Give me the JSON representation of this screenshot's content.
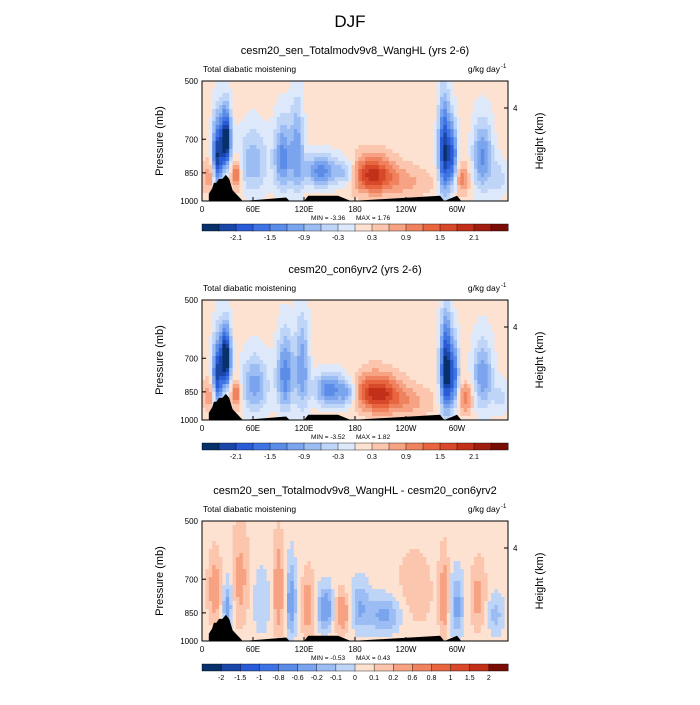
{
  "figure_title": "DJF",
  "chart_data": [
    {
      "type": "heatmap",
      "title": "cesm20_sen_Totalmodv9v8_WangHL (yrs 2-6)",
      "left_label": "Total diabatic moistening",
      "units": "g/kg day",
      "units_exp": "-1",
      "ylabel": "Pressure (mb)",
      "ylabel_right": "Height (km)",
      "yticks": [
        "500",
        "700",
        "850",
        "1000"
      ],
      "yticks_right": [
        "4"
      ],
      "xticks": [
        "0",
        "60E",
        "120E",
        "180",
        "120W",
        "60W"
      ],
      "xlim": [
        0,
        360
      ],
      "ylim": [
        1000,
        500
      ],
      "min_label": "MIN = -3.36",
      "max_label": "MAX = 1.76",
      "colorbar_labels": [
        "-2.1",
        "-1.5",
        "-0.9",
        "-0.3",
        "0.3",
        "0.9",
        "1.5",
        "2.1"
      ],
      "colorbar_colors": [
        "#08306b",
        "#1a46a8",
        "#2a5bd7",
        "#3f73e3",
        "#5b8ce8",
        "#7aa4ee",
        "#9cbdf3",
        "#bfd5f8",
        "#dde9fb",
        "#fde2d2",
        "#fbc6ad",
        "#f6a283",
        "#f0835f",
        "#e76640",
        "#d8482a",
        "#c2301a",
        "#a01d0f",
        "#7a0c06"
      ],
      "blobs": [
        {
          "lon": 18,
          "p": 790,
          "rx": 6,
          "ry": 170,
          "v": -2.6
        },
        {
          "lon": 28,
          "p": 700,
          "rx": 6,
          "ry": 120,
          "v": -3.0
        },
        {
          "lon": 12,
          "p": 870,
          "rx": 10,
          "ry": 80,
          "v": 1.0
        },
        {
          "lon": 40,
          "p": 860,
          "rx": 6,
          "ry": 70,
          "v": 1.4
        },
        {
          "lon": 60,
          "p": 800,
          "rx": 18,
          "ry": 150,
          "v": -1.0
        },
        {
          "lon": 95,
          "p": 780,
          "rx": 10,
          "ry": 160,
          "v": -1.5
        },
        {
          "lon": 112,
          "p": 740,
          "rx": 8,
          "ry": 200,
          "v": -1.2
        },
        {
          "lon": 140,
          "p": 840,
          "rx": 20,
          "ry": 80,
          "v": -1.5
        },
        {
          "lon": 170,
          "p": 850,
          "rx": 12,
          "ry": 70,
          "v": -0.9
        },
        {
          "lon": 200,
          "p": 860,
          "rx": 25,
          "ry": 90,
          "v": 1.76
        },
        {
          "lon": 240,
          "p": 900,
          "rx": 30,
          "ry": 80,
          "v": 0.5
        },
        {
          "lon": 285,
          "p": 750,
          "rx": 7,
          "ry": 200,
          "v": -2.5
        },
        {
          "lon": 295,
          "p": 780,
          "rx": 6,
          "ry": 150,
          "v": -1.8
        },
        {
          "lon": 305,
          "p": 880,
          "rx": 10,
          "ry": 80,
          "v": 0.9
        },
        {
          "lon": 330,
          "p": 780,
          "rx": 12,
          "ry": 160,
          "v": -1.4
        },
        {
          "lon": 350,
          "p": 880,
          "rx": 10,
          "ry": 90,
          "v": -0.6
        }
      ],
      "background": 0.15
    },
    {
      "type": "heatmap",
      "title": "cesm20_con6yrv2 (yrs 2-6)",
      "left_label": "Total diabatic moistening",
      "units": "g/kg day",
      "units_exp": "-1",
      "ylabel": "Pressure (mb)",
      "ylabel_right": "Height (km)",
      "yticks": [
        "500",
        "700",
        "850",
        "1000"
      ],
      "yticks_right": [
        "4"
      ],
      "xticks": [
        "0",
        "60E",
        "120E",
        "180",
        "120W",
        "60W"
      ],
      "xlim": [
        0,
        360
      ],
      "ylim": [
        1000,
        500
      ],
      "min_label": "MIN = -3.52",
      "max_label": "MAX = 1.82",
      "colorbar_labels": [
        "-2.1",
        "-1.5",
        "-0.9",
        "-0.3",
        "0.3",
        "0.9",
        "1.5",
        "2.1"
      ],
      "colorbar_colors": [
        "#08306b",
        "#1a46a8",
        "#2a5bd7",
        "#3f73e3",
        "#5b8ce8",
        "#7aa4ee",
        "#9cbdf3",
        "#bfd5f8",
        "#dde9fb",
        "#fde2d2",
        "#fbc6ad",
        "#f6a283",
        "#f0835f",
        "#e76640",
        "#d8482a",
        "#c2301a",
        "#a01d0f",
        "#7a0c06"
      ],
      "blobs": [
        {
          "lon": 18,
          "p": 790,
          "rx": 6,
          "ry": 170,
          "v": -2.4
        },
        {
          "lon": 28,
          "p": 700,
          "rx": 6,
          "ry": 120,
          "v": -3.2
        },
        {
          "lon": 12,
          "p": 870,
          "rx": 10,
          "ry": 80,
          "v": 0.9
        },
        {
          "lon": 40,
          "p": 860,
          "rx": 6,
          "ry": 70,
          "v": 1.3
        },
        {
          "lon": 62,
          "p": 820,
          "rx": 16,
          "ry": 140,
          "v": -1.2
        },
        {
          "lon": 98,
          "p": 770,
          "rx": 10,
          "ry": 170,
          "v": -1.6
        },
        {
          "lon": 118,
          "p": 740,
          "rx": 8,
          "ry": 200,
          "v": -1.3
        },
        {
          "lon": 150,
          "p": 840,
          "rx": 18,
          "ry": 80,
          "v": -1.6
        },
        {
          "lon": 172,
          "p": 860,
          "rx": 10,
          "ry": 70,
          "v": -1.0
        },
        {
          "lon": 205,
          "p": 855,
          "rx": 25,
          "ry": 90,
          "v": 1.82
        },
        {
          "lon": 240,
          "p": 900,
          "rx": 30,
          "ry": 80,
          "v": 0.6
        },
        {
          "lon": 287,
          "p": 750,
          "rx": 7,
          "ry": 200,
          "v": -2.8
        },
        {
          "lon": 297,
          "p": 780,
          "rx": 6,
          "ry": 150,
          "v": -1.6
        },
        {
          "lon": 310,
          "p": 880,
          "rx": 10,
          "ry": 80,
          "v": 1.0
        },
        {
          "lon": 330,
          "p": 780,
          "rx": 12,
          "ry": 160,
          "v": -1.3
        },
        {
          "lon": 352,
          "p": 880,
          "rx": 10,
          "ry": 90,
          "v": -0.5
        }
      ],
      "background": 0.15
    },
    {
      "type": "heatmap",
      "title": "cesm20_sen_Totalmodv9v8_WangHL - cesm20_con6yrv2",
      "left_label": "Total diabatic moistening",
      "units": "g/kg day",
      "units_exp": "-1",
      "ylabel": "Pressure (mb)",
      "ylabel_right": "Height (km)",
      "yticks": [
        "500",
        "700",
        "850",
        "1000"
      ],
      "yticks_right": [
        "4"
      ],
      "xticks": [
        "0",
        "60E",
        "120E",
        "180",
        "120W",
        "60W"
      ],
      "xlim": [
        0,
        360
      ],
      "ylim": [
        1000,
        500
      ],
      "min_label": "MIN = -0.53",
      "max_label": "MAX = 0.43",
      "colorbar_labels": [
        "-2",
        "-1.5",
        "-1",
        "-0.8",
        "-0.6",
        "-0.2",
        "-0.1",
        "0",
        "0.1",
        "0.2",
        "0.6",
        "0.8",
        "1",
        "1.5",
        "2"
      ],
      "colorbar_colors": [
        "#08306b",
        "#1a46a8",
        "#2a5bd7",
        "#3f73e3",
        "#5b8ce8",
        "#7aa4ee",
        "#9cbdf3",
        "#bfd5f8",
        "#fde2d2",
        "#fbc6ad",
        "#f6a283",
        "#f0835f",
        "#e76640",
        "#d8482a",
        "#c2301a",
        "#7a0c06"
      ],
      "blobs": [
        {
          "lon": 15,
          "p": 750,
          "rx": 8,
          "ry": 150,
          "v": 0.25
        },
        {
          "lon": 30,
          "p": 820,
          "rx": 6,
          "ry": 120,
          "v": -0.3
        },
        {
          "lon": 45,
          "p": 700,
          "rx": 10,
          "ry": 200,
          "v": 0.2
        },
        {
          "lon": 70,
          "p": 800,
          "rx": 10,
          "ry": 150,
          "v": -0.15
        },
        {
          "lon": 90,
          "p": 750,
          "rx": 6,
          "ry": 200,
          "v": 0.3
        },
        {
          "lon": 105,
          "p": 800,
          "rx": 6,
          "ry": 170,
          "v": -0.35
        },
        {
          "lon": 125,
          "p": 820,
          "rx": 8,
          "ry": 150,
          "v": 0.25
        },
        {
          "lon": 145,
          "p": 830,
          "rx": 10,
          "ry": 100,
          "v": -0.4
        },
        {
          "lon": 165,
          "p": 850,
          "rx": 10,
          "ry": 100,
          "v": 0.3
        },
        {
          "lon": 185,
          "p": 820,
          "rx": 12,
          "ry": 120,
          "v": -0.25
        },
        {
          "lon": 215,
          "p": 860,
          "rx": 20,
          "ry": 90,
          "v": -0.3
        },
        {
          "lon": 250,
          "p": 750,
          "rx": 25,
          "ry": 200,
          "v": 0.1
        },
        {
          "lon": 285,
          "p": 780,
          "rx": 6,
          "ry": 180,
          "v": 0.25
        },
        {
          "lon": 300,
          "p": 820,
          "rx": 8,
          "ry": 150,
          "v": -0.3
        },
        {
          "lon": 325,
          "p": 780,
          "rx": 10,
          "ry": 150,
          "v": 0.2
        },
        {
          "lon": 345,
          "p": 860,
          "rx": 10,
          "ry": 100,
          "v": -0.2
        }
      ],
      "background": 0.05
    }
  ],
  "topography_lon": [
    8,
    12,
    14,
    17,
    20,
    24,
    28,
    32,
    36,
    48,
    99,
    103,
    120,
    125,
    135,
    150,
    160,
    175,
    280,
    285,
    300,
    305
  ],
  "topography_p": [
    960,
    930,
    900,
    900,
    880,
    880,
    860,
    880,
    940,
    1000,
    980,
    1000,
    1000,
    970,
    970,
    970,
    970,
    1000,
    970,
    1000,
    970,
    1000
  ]
}
